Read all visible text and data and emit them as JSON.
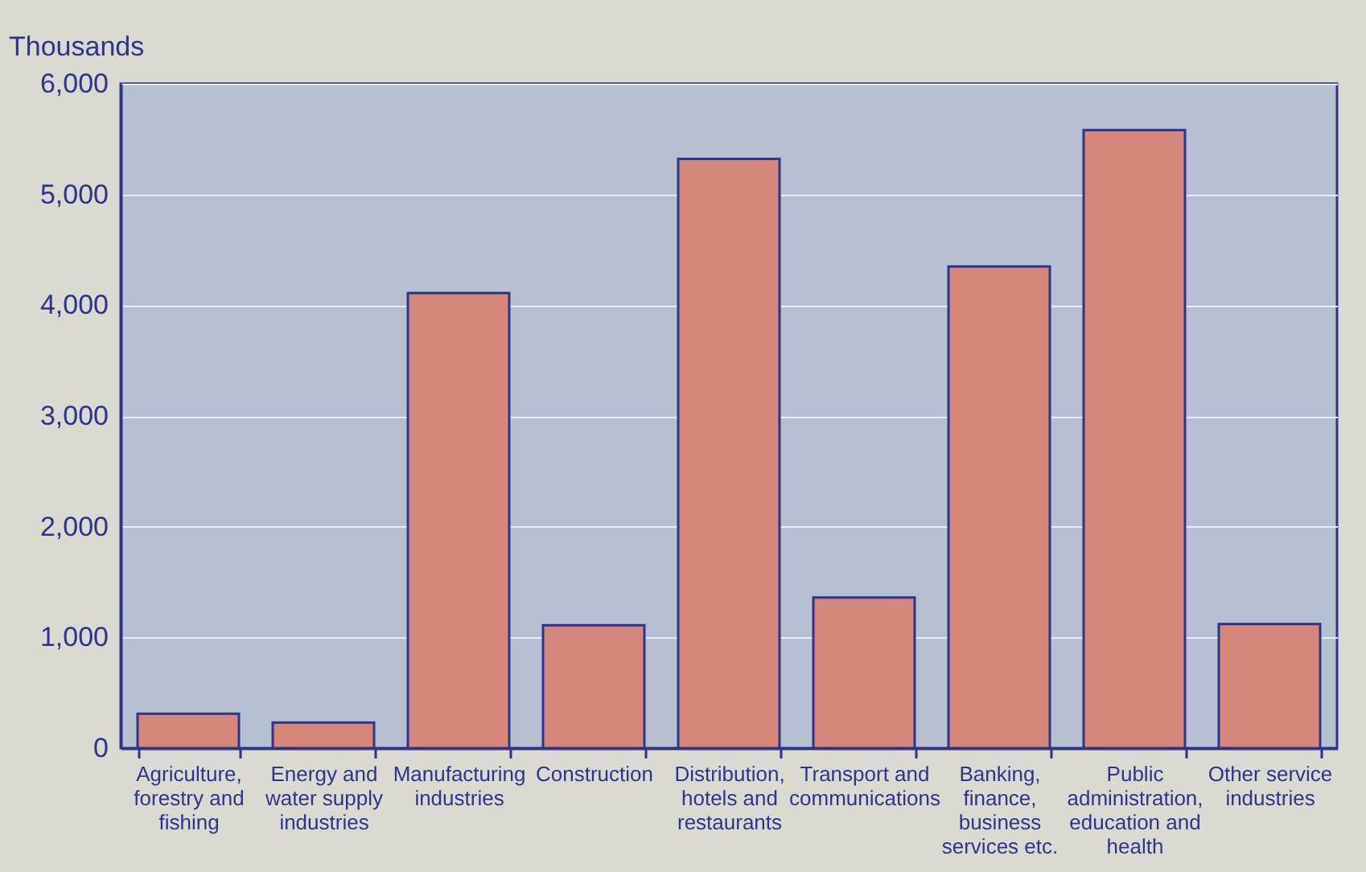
{
  "chart_data": {
    "type": "bar",
    "ylabel": "Thousands",
    "categories": [
      "Agriculture, forestry and fishing",
      "Energy and water supply industries",
      "Manufacturing industries",
      "Construction",
      "Distribution, hotels and restaurants",
      "Transport and communications",
      "Banking, finance, business services etc.",
      "Public administration, education and health",
      "Other service industries"
    ],
    "values": [
      310,
      230,
      4110,
      1110,
      5320,
      1360,
      4350,
      5580,
      1120
    ],
    "color": "#d4877a",
    "ylim": [
      0,
      6000
    ],
    "yticks": [
      0,
      {
        "value": 1000,
        "label": "1,000"
      },
      {
        "value": 2000,
        "label": "2,000"
      },
      {
        "value": 3000,
        "label": "3,000"
      },
      {
        "value": 4000,
        "label": "4,000"
      },
      {
        "value": 5000,
        "label": "5,000"
      },
      {
        "value": 6000,
        "label": "6,000"
      }
    ],
    "grid": "y"
  }
}
